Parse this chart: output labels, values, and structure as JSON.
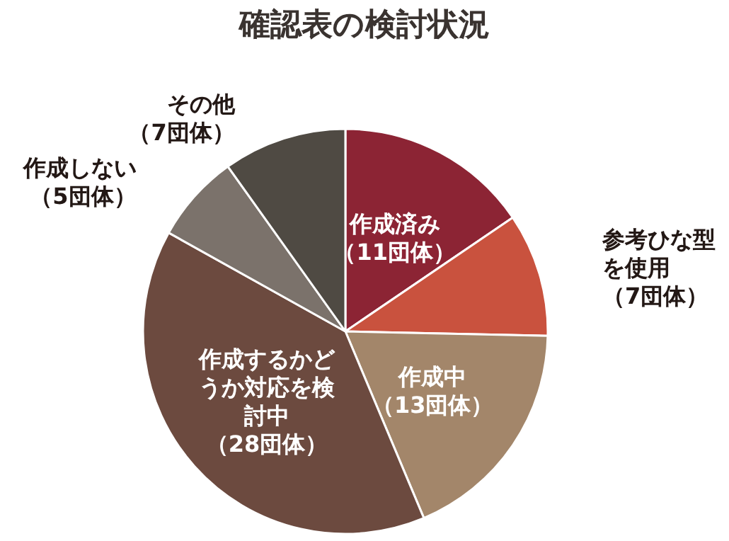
{
  "chart_data": {
    "type": "pie",
    "title": "確認表の検討状況",
    "categories": [
      "作成済み",
      "参考ひな型を使用",
      "作成中",
      "作成するかどうか対応を検討中",
      "作成しない",
      "その他"
    ],
    "values": [
      11,
      7,
      13,
      28,
      5,
      7
    ],
    "value_labels": [
      "（11団体）",
      "（7団体）",
      "（13団体）",
      "（28団体）",
      "（5団体）",
      "（7団体）"
    ],
    "colors": [
      "#8c2434",
      "#c9523e",
      "#a3866a",
      "#6c4a3f",
      "#7b726b",
      "#4f4a43"
    ],
    "legend": false
  }
}
